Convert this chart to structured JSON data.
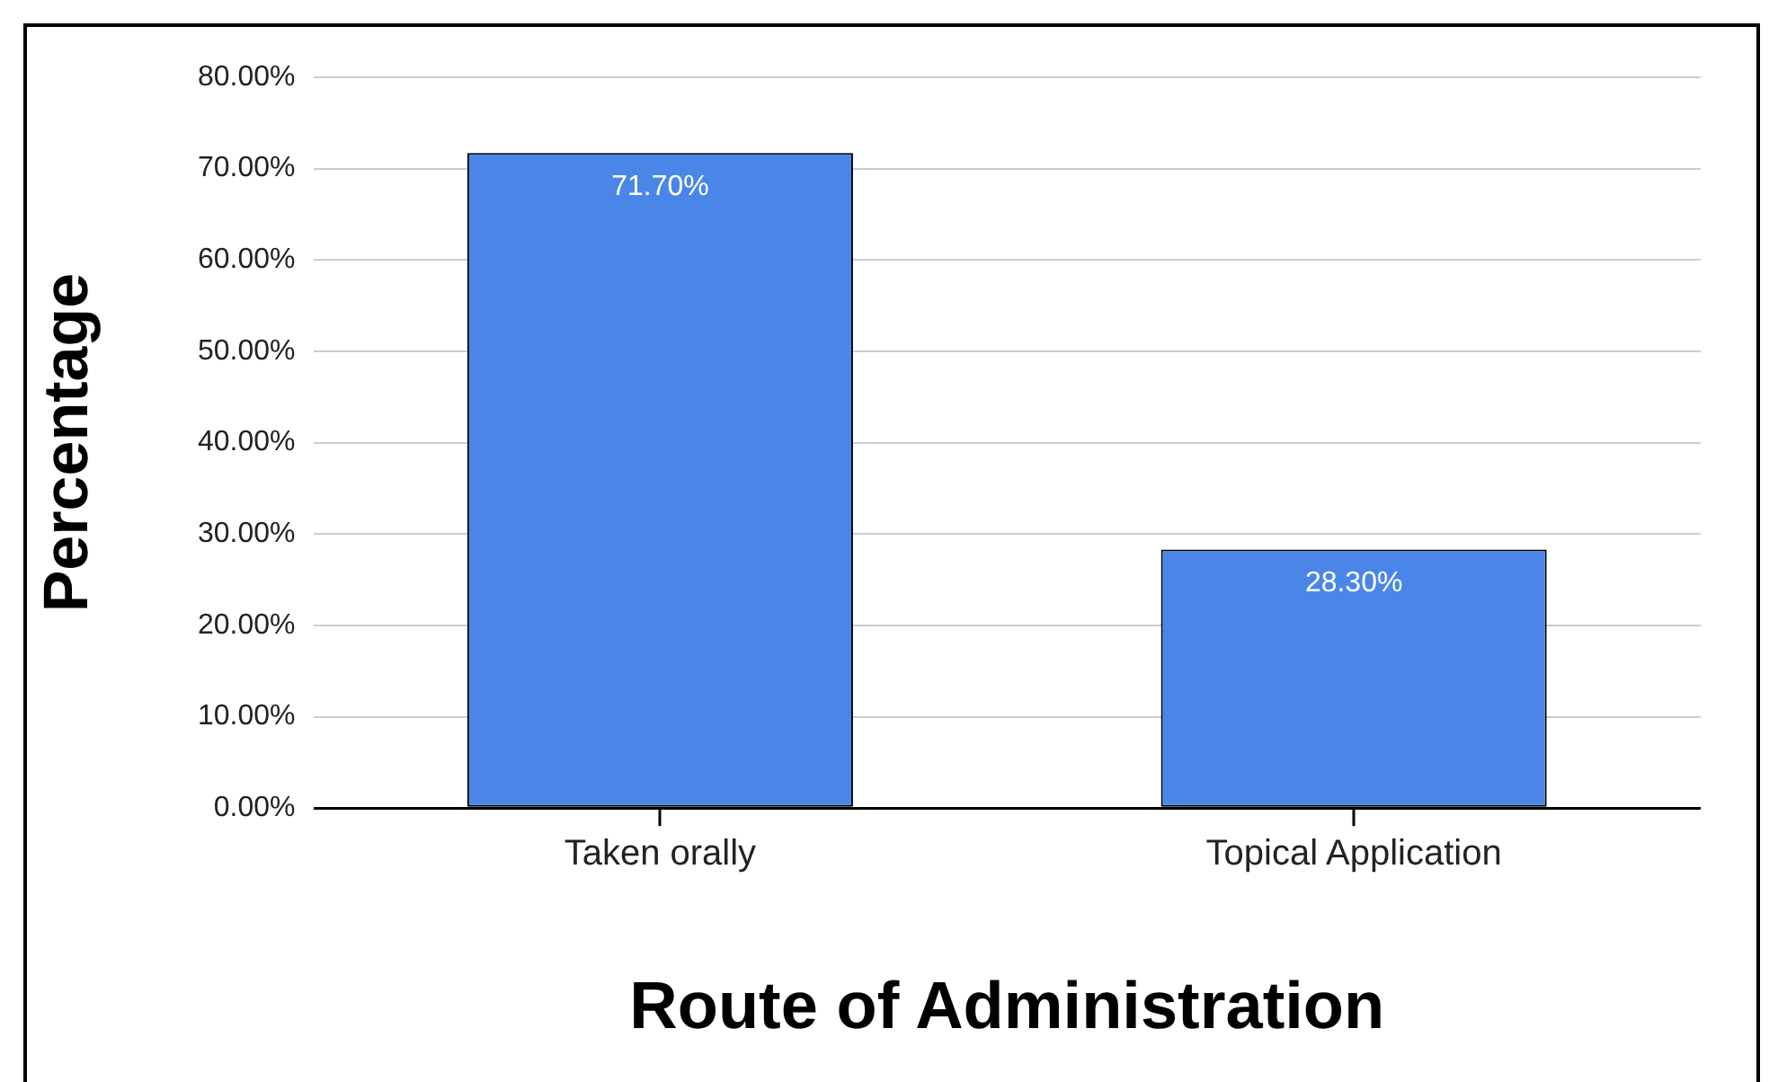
{
  "chart_data": {
    "type": "bar",
    "xlabel": "Route of Administration",
    "ylabel": "Percentage",
    "categories": [
      "Taken orally",
      "Topical Application"
    ],
    "values": [
      71.7,
      28.3
    ],
    "color": "#4a86e8",
    "value_labels": [
      "71.70%",
      "28.30%"
    ],
    "ylim": [
      0,
      80
    ],
    "yticks": [
      {
        "value": 0,
        "label": "0.00%"
      },
      {
        "value": 10,
        "label": "10.00%"
      },
      {
        "value": 20,
        "label": "20.00%"
      },
      {
        "value": 30,
        "label": "30.00%"
      },
      {
        "value": 40,
        "label": "40.00%"
      },
      {
        "value": 50,
        "label": "50.00%"
      },
      {
        "value": 60,
        "label": "60.00%"
      },
      {
        "value": 70,
        "label": "70.00%"
      },
      {
        "value": 80,
        "label": "80.00%"
      }
    ],
    "grid": "y",
    "legend": false
  }
}
